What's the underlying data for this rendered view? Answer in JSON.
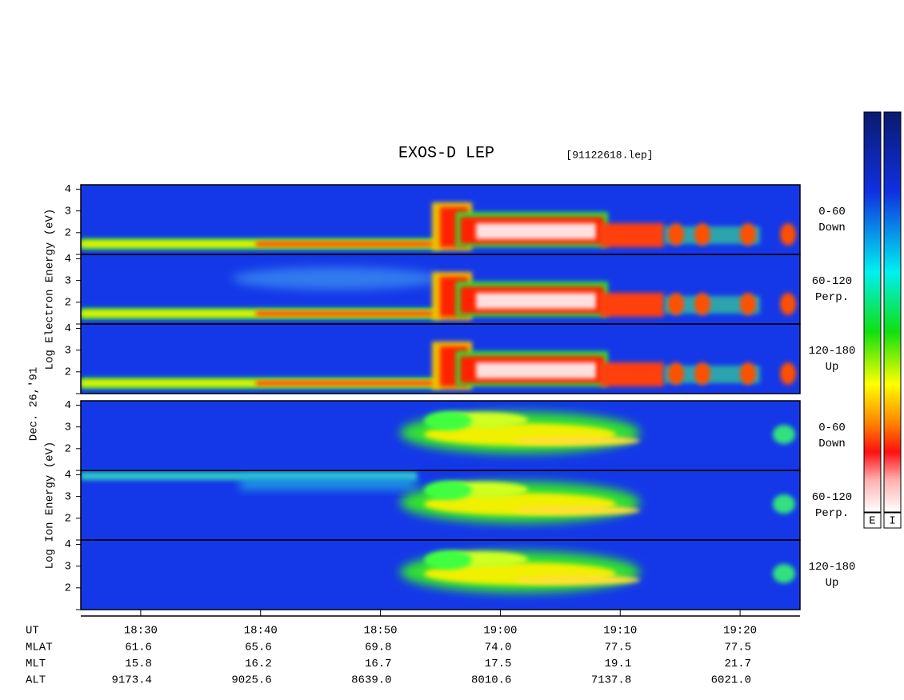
{
  "chart_data": {
    "type": "spectrogram",
    "title": "EXOS-D LEP",
    "subtitle": "[91122618.lep]",
    "date": "Dec. 26,'91",
    "groups": [
      {
        "ylabel": "Log Electron Energy (eV)",
        "kind": "electron",
        "panels": [
          {
            "label": [
              "0-60",
              "Down"
            ]
          },
          {
            "label": [
              "60-120",
              "Perp."
            ]
          },
          {
            "label": [
              "120-180",
              "Up"
            ]
          }
        ]
      },
      {
        "ylabel": "Log Ion Energy (eV)",
        "kind": "ion",
        "panels": [
          {
            "label": [
              "0-60",
              "Down"
            ]
          },
          {
            "label": [
              "60-120",
              "Perp."
            ]
          },
          {
            "label": [
              "120-180",
              "Up"
            ]
          }
        ]
      }
    ],
    "ylim": [
      1,
      4.2
    ],
    "yticks": [
      {
        "value": 1,
        "label": null
      },
      2,
      3,
      4
    ],
    "xlim": [
      "18:25",
      "19:25"
    ],
    "xlabel": "UT",
    "xticks": [
      "18:30",
      "18:40",
      "18:50",
      "19:00",
      "19:10",
      "19:20"
    ],
    "rows": [
      {
        "name": "MLAT",
        "values": [
          "61.6",
          "65.6",
          "69.8",
          "74.0",
          "77.5",
          "77.5"
        ]
      },
      {
        "name": "MLT",
        "values": [
          "15.8",
          "16.2",
          "16.7",
          "17.5",
          "19.1",
          "21.7"
        ]
      },
      {
        "name": "ALT",
        "values": [
          "9173.4",
          "9025.6",
          "8639.0",
          "8010.6",
          "7137.8",
          "6021.0"
        ]
      }
    ],
    "colorbars": [
      "E",
      "I"
    ]
  }
}
